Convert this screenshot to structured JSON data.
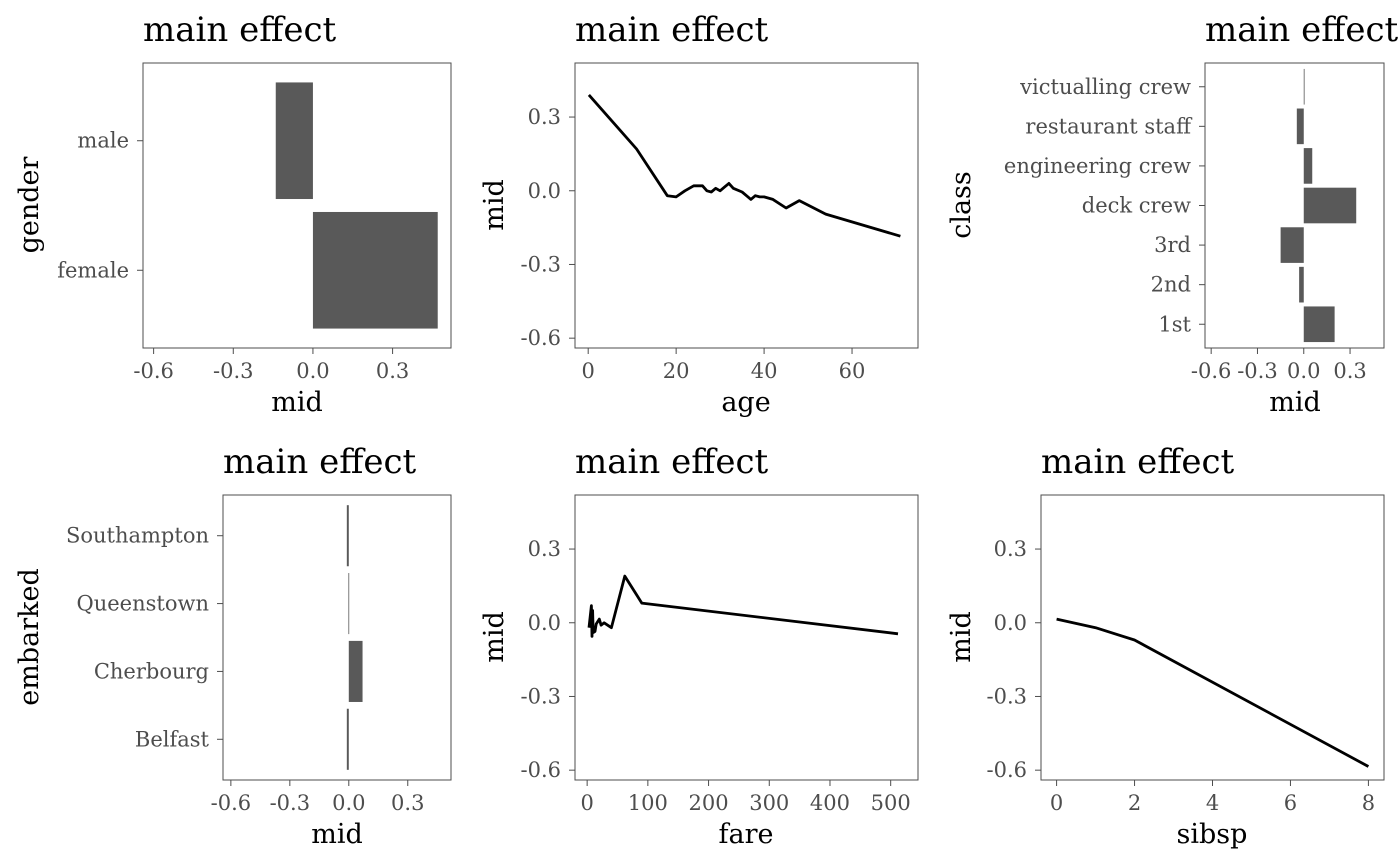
{
  "chart_data": [
    {
      "type": "bar",
      "orientation": "horizontal",
      "title": "main effect",
      "xlabel": "mid",
      "ylabel": "gender",
      "categories": [
        "female",
        "male"
      ],
      "values": [
        0.47,
        -0.14
      ],
      "xlim": [
        -0.64,
        0.52
      ],
      "xticks": [
        "-0.6",
        "-0.3",
        "0.0",
        "0.3"
      ],
      "grid": false
    },
    {
      "type": "line",
      "title": "main effect",
      "xlabel": "age",
      "ylabel": "mid",
      "x": [
        0.17,
        11,
        18,
        20,
        22,
        24,
        26,
        27,
        28,
        29,
        30,
        31,
        32,
        33,
        35,
        36,
        37,
        38,
        39,
        40,
        42,
        45,
        48,
        54,
        71
      ],
      "y": [
        0.39,
        0.17,
        -0.02,
        -0.025,
        0.0,
        0.02,
        0.02,
        0.0,
        -0.005,
        0.01,
        0.0,
        0.015,
        0.03,
        0.01,
        -0.005,
        -0.02,
        -0.035,
        -0.02,
        -0.025,
        -0.025,
        -0.035,
        -0.07,
        -0.04,
        -0.095,
        -0.185
      ],
      "xlim": [
        -3,
        75
      ],
      "ylim": [
        -0.64,
        0.52
      ],
      "xticks": [
        "0",
        "20",
        "40",
        "60"
      ],
      "yticks": [
        "-0.6",
        "-0.3",
        "0.0",
        "0.3"
      ],
      "grid": false
    },
    {
      "type": "bar",
      "orientation": "horizontal",
      "title": "main effect",
      "xlabel": "mid",
      "ylabel": "class",
      "categories": [
        "1st",
        "2nd",
        "3rd",
        "deck crew",
        "engineering crew",
        "restaurant staff",
        "victualling crew"
      ],
      "values": [
        0.2,
        -0.03,
        -0.15,
        0.34,
        0.055,
        -0.045,
        0.003
      ],
      "xlim": [
        -0.64,
        0.52
      ],
      "xticks": [
        "-0.6",
        "-0.3",
        "0.0",
        "0.3"
      ],
      "grid": false
    },
    {
      "type": "bar",
      "orientation": "horizontal",
      "title": "main effect",
      "xlabel": "mid",
      "ylabel": "embarked",
      "categories": [
        "Belfast",
        "Cherbourg",
        "Queenstown",
        "Southampton"
      ],
      "values": [
        -0.01,
        0.07,
        -0.002,
        -0.01
      ],
      "xlim": [
        -0.64,
        0.52
      ],
      "xticks": [
        "-0.6",
        "-0.3",
        "0.0",
        "0.3"
      ],
      "grid": false
    },
    {
      "type": "line",
      "title": "main effect",
      "xlabel": "fare",
      "ylabel": "mid",
      "x": [
        3,
        7,
        8,
        9,
        10,
        13,
        15,
        20,
        23,
        28,
        40,
        62,
        90,
        512
      ],
      "y": [
        -0.02,
        0.07,
        -0.055,
        0.05,
        -0.04,
        -0.035,
        -0.005,
        0.015,
        -0.01,
        0.0,
        -0.02,
        0.19,
        0.08,
        -0.045
      ],
      "xlim": [
        -20,
        545
      ],
      "ylim": [
        -0.64,
        0.52
      ],
      "xticks": [
        "0",
        "100",
        "200",
        "300",
        "400",
        "500"
      ],
      "yticks": [
        "-0.6",
        "-0.3",
        "0.0",
        "0.3"
      ],
      "grid": false
    },
    {
      "type": "line",
      "title": "main effect",
      "xlabel": "sibsp",
      "ylabel": "mid",
      "x": [
        0,
        1,
        2,
        8
      ],
      "y": [
        0.015,
        -0.02,
        -0.07,
        -0.585
      ],
      "xlim": [
        -0.4,
        8.4
      ],
      "ylim": [
        -0.64,
        0.52
      ],
      "xticks": [
        "0",
        "2",
        "4",
        "6",
        "8"
      ],
      "yticks": [
        "-0.6",
        "-0.3",
        "0.0",
        "0.3"
      ],
      "grid": false
    }
  ]
}
